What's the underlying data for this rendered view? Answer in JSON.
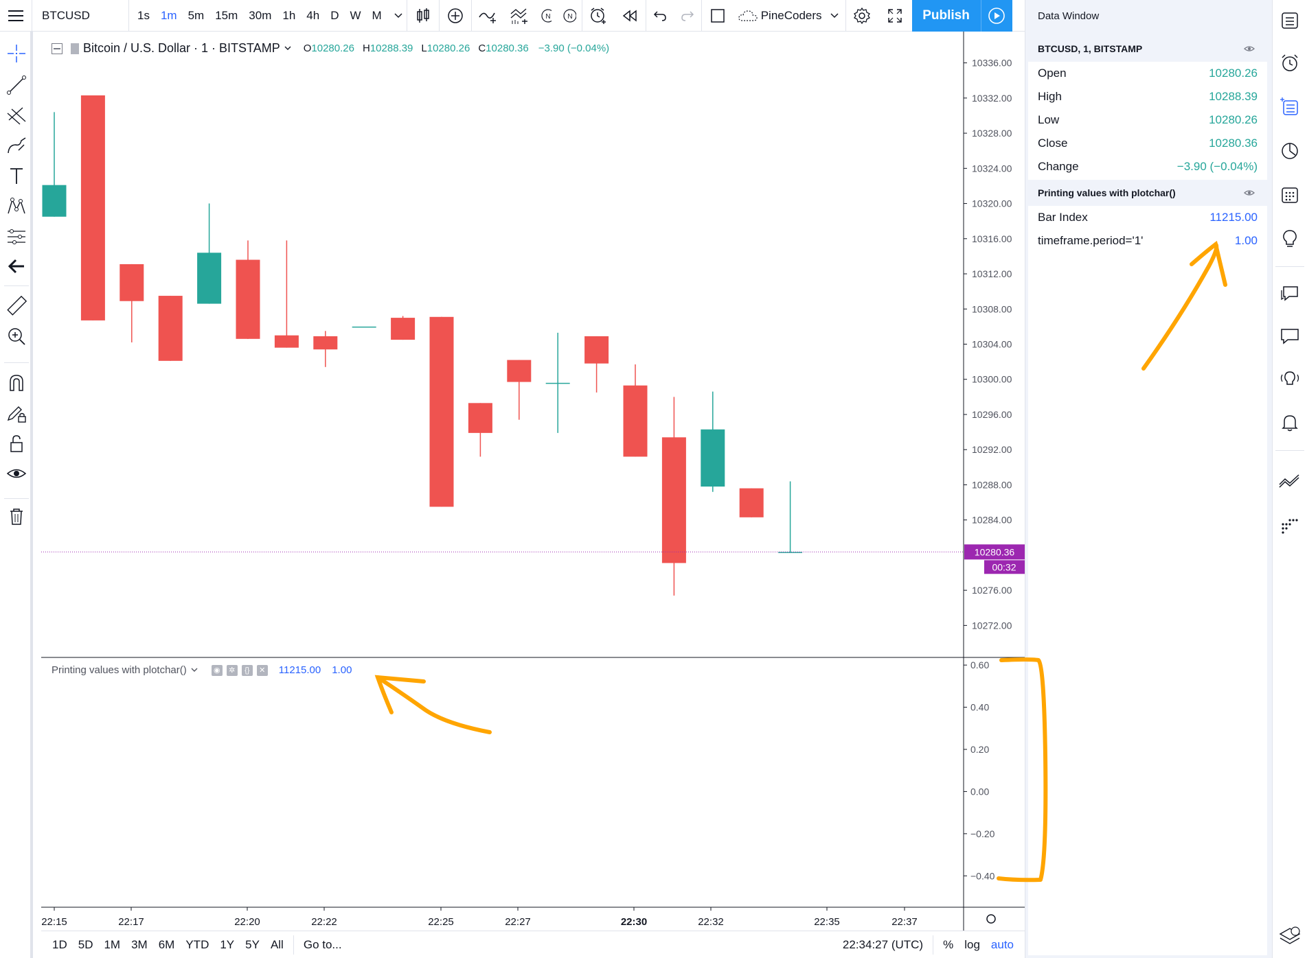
{
  "topbar": {
    "menu_icon": "hamburger-icon",
    "symbol": "BTCUSD",
    "timeframes": [
      "1s",
      "1m",
      "5m",
      "15m",
      "30m",
      "1h",
      "4h",
      "D",
      "W",
      "M"
    ],
    "active_timeframe": "1m",
    "layout_name": "PineCoders",
    "publish_label": "Publish"
  },
  "legend": {
    "title": "Bitcoin / U.S. Dollar · 1 · BITSTAMP",
    "open_label": "O",
    "open": "10280.26",
    "high_label": "H",
    "high": "10288.39",
    "low_label": "L",
    "low": "10280.26",
    "close_label": "C",
    "close": "10280.36",
    "change": "−3.90 (−0.04%)"
  },
  "indicator_legend": {
    "name": "Printing values with plotchar()",
    "value1": "11215.00",
    "value2": "1.00"
  },
  "chart_data": [
    {
      "type": "candlestick",
      "title": "",
      "x": [
        "22:15",
        "22:16",
        "22:17",
        "22:18",
        "22:19",
        "22:20",
        "22:21",
        "22:22",
        "22:23",
        "22:24",
        "22:25",
        "22:26",
        "22:27",
        "22:28",
        "22:29",
        "22:30",
        "22:31",
        "22:32",
        "22:33",
        "22:34"
      ],
      "open": [
        10318.5,
        10332.3,
        10313.1,
        10309.5,
        10308.6,
        10313.6,
        10305.0,
        10304.9,
        10306.0,
        10307.0,
        10307.1,
        10297.3,
        10302.2,
        10299.6,
        10304.9,
        10299.3,
        10293.4,
        10287.8,
        10287.6,
        10280.26
      ],
      "close": [
        10322.1,
        10306.7,
        10308.9,
        10302.1,
        10314.4,
        10304.6,
        10303.6,
        10303.4,
        10306.0,
        10304.5,
        10285.5,
        10293.9,
        10299.7,
        10299.6,
        10301.8,
        10291.2,
        10279.1,
        10294.3,
        10284.3,
        10280.36
      ],
      "high": [
        10330.4,
        10332.3,
        10313.1,
        10309.5,
        10320.0,
        10315.8,
        10315.8,
        10305.5,
        10306.0,
        10307.2,
        10307.1,
        10297.3,
        10302.2,
        10305.3,
        10304.9,
        10301.7,
        10298.0,
        10298.6,
        10287.6,
        10288.39
      ],
      "low": [
        10318.5,
        10306.7,
        10304.2,
        10302.1,
        10308.6,
        10304.6,
        10303.6,
        10301.4,
        10306.0,
        10304.5,
        10285.5,
        10291.2,
        10295.4,
        10293.9,
        10298.5,
        10291.2,
        10275.4,
        10287.2,
        10284.3,
        10280.26
      ],
      "y_ticks": [
        "10336.00",
        "10332.00",
        "10328.00",
        "10324.00",
        "10320.00",
        "10316.00",
        "10312.00",
        "10308.00",
        "10304.00",
        "10300.00",
        "10296.00",
        "10292.00",
        "10288.00",
        "10284.00",
        "10276.00",
        "10272.00"
      ],
      "ylim": [
        10270,
        10338
      ],
      "last_price_label": "10280.36",
      "countdown_label": "00:32",
      "colors": {
        "up": "#26a69a",
        "down": "#ef5350",
        "last_line": "#9c27b0"
      }
    },
    {
      "type": "line",
      "title": "Printing values with plotchar()",
      "y_ticks": [
        "0.60",
        "0.40",
        "0.20",
        "0.00",
        "−0.20",
        "−0.40"
      ],
      "ylim": [
        -0.5,
        0.62
      ],
      "series": []
    }
  ],
  "x_axis_labels": [
    "22:15",
    "22:17",
    "22:20",
    "22:22",
    "22:25",
    "22:27",
    "22:30",
    "22:32",
    "22:35",
    "22:37"
  ],
  "data_window": {
    "title": "Data Window",
    "section1_title": "BTCUSD, 1, BITSTAMP",
    "rows1": [
      {
        "label": "Open",
        "value": "10280.26"
      },
      {
        "label": "High",
        "value": "10288.39"
      },
      {
        "label": "Low",
        "value": "10280.26"
      },
      {
        "label": "Close",
        "value": "10280.36"
      },
      {
        "label": "Change",
        "value": "−3.90 (−0.04%)"
      }
    ],
    "section2_title": "Printing values with plotchar()",
    "rows2": [
      {
        "label": "Bar Index",
        "value": "11215.00"
      },
      {
        "label": "timeframe.period='1'",
        "value": "1.00"
      }
    ]
  },
  "bottombar": {
    "ranges": [
      "1D",
      "5D",
      "1M",
      "3M",
      "6M",
      "YTD",
      "1Y",
      "5Y",
      "All"
    ],
    "goto_label": "Go to...",
    "clock": "22:34:27 (UTC)",
    "percent_label": "%",
    "log_label": "log",
    "auto_label": "auto"
  },
  "colors": {
    "accent": "#2962ff",
    "publish": "#2196f3",
    "annotation": "#ffa500"
  }
}
